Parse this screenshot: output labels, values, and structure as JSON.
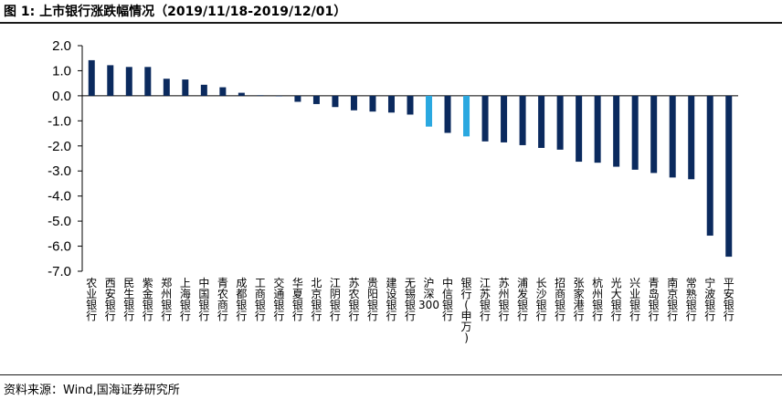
{
  "title": "图 1:  上市银行涨跌幅情况（2019/11/18-2019/12/01）",
  "source": "资料来源：Wind,国海证券研究所",
  "colors": {
    "bank": "#0b2a5e",
    "highlight": "#2aa8e0"
  },
  "chart_data": {
    "type": "bar",
    "categories": [
      "农业银行",
      "西安银行",
      "民生银行",
      "紫金银行",
      "郑州银行",
      "上海银行",
      "中国银行",
      "青农商行",
      "成都银行",
      "工商银行",
      "交通银行",
      "华夏银行",
      "北京银行",
      "江阴银行",
      "苏农银行",
      "贵阳银行",
      "建设银行",
      "无锡银行",
      "沪深300",
      "中信银行",
      "银行(申万)",
      "江苏银行",
      "苏州银行",
      "浦发银行",
      "长沙银行",
      "招商银行",
      "张家港行",
      "杭州银行",
      "光大银行",
      "兴业银行",
      "青岛银行",
      "南京银行",
      "常熟银行",
      "宁波银行",
      "平安银行"
    ],
    "values": [
      1.42,
      1.22,
      1.15,
      1.15,
      0.68,
      0.65,
      0.44,
      0.34,
      0.12,
      0.02,
      -0.01,
      -0.24,
      -0.33,
      -0.45,
      -0.58,
      -0.63,
      -0.67,
      -0.75,
      -1.23,
      -1.48,
      -1.62,
      -1.82,
      -1.86,
      -1.97,
      -2.08,
      -2.15,
      -2.63,
      -2.67,
      -2.83,
      -2.95,
      -3.08,
      -3.26,
      -3.33,
      -5.58,
      -6.42
    ],
    "highlight": [
      "沪深300",
      "银行(申万)"
    ],
    "ylim": [
      -7.0,
      2.0
    ],
    "yticks": [
      "2.0",
      "1.0",
      "0.0",
      "-1.0",
      "-2.0",
      "-3.0",
      "-4.0",
      "-5.0",
      "-6.0",
      "-7.0"
    ],
    "ytick_values": [
      2,
      1,
      0,
      -1,
      -2,
      -3,
      -4,
      -5,
      -6,
      -7
    ],
    "xlabel": "",
    "ylabel": "",
    "grid": false,
    "legend": "none"
  }
}
